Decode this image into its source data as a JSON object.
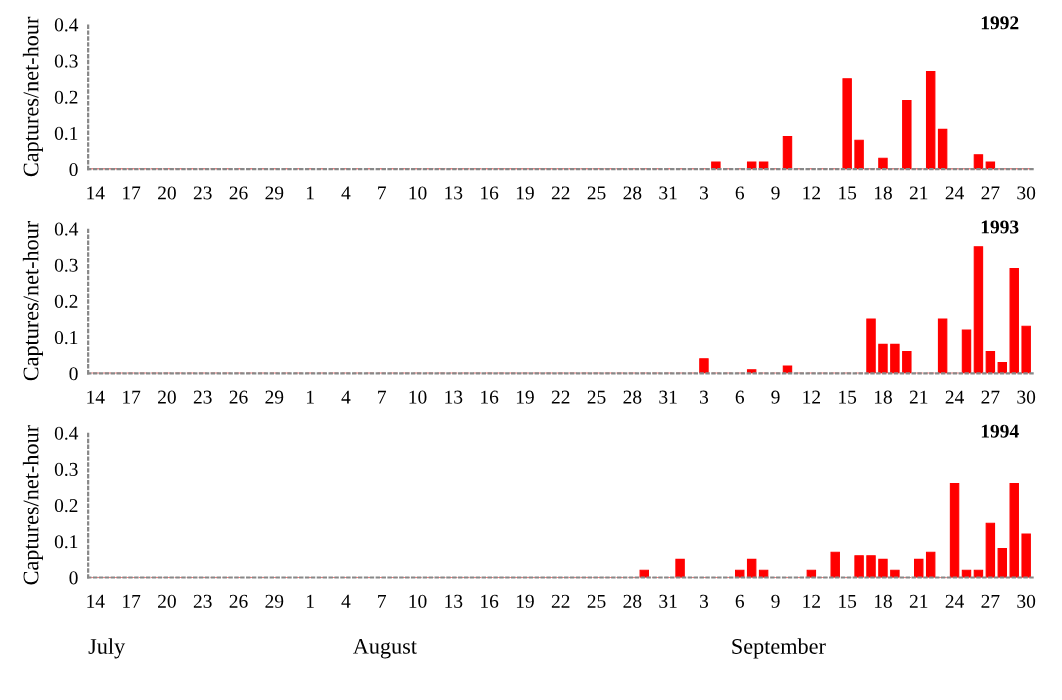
{
  "chart_data": [
    {
      "type": "bar",
      "title": "1992",
      "ylabel": "Captures/net-hour",
      "color": "#ff0000",
      "grid": false,
      "ylim": [
        0,
        0.4
      ],
      "yticks": [
        0,
        0.1,
        0.2,
        0.3,
        0.4
      ],
      "categories": [
        "14",
        null,
        null,
        "17",
        null,
        null,
        "20",
        null,
        null,
        "23",
        null,
        null,
        "26",
        null,
        null,
        "29",
        null,
        null,
        "1",
        null,
        null,
        "4",
        null,
        null,
        "7",
        null,
        null,
        "10",
        null,
        null,
        "13",
        null,
        null,
        "16",
        null,
        null,
        "19",
        null,
        null,
        "22",
        null,
        null,
        "25",
        null,
        null,
        "28",
        null,
        null,
        "31",
        null,
        null,
        "3",
        null,
        null,
        "6",
        null,
        null,
        "9",
        null,
        null,
        "12",
        null,
        null,
        "15",
        null,
        null,
        "18",
        null,
        null,
        "21",
        null,
        null,
        "24",
        null,
        null,
        "27",
        null,
        null,
        "30"
      ],
      "values": [
        0,
        0,
        0,
        0,
        0,
        0,
        0,
        0,
        0,
        0,
        0,
        0,
        0,
        0,
        0,
        0,
        0,
        0,
        0,
        0,
        0,
        0,
        0,
        0,
        0,
        0,
        0,
        0,
        0,
        0,
        0,
        0,
        0,
        0,
        0,
        0,
        0,
        0,
        0,
        0,
        0,
        0,
        0,
        0,
        0,
        0,
        0,
        0,
        0,
        0,
        0,
        0,
        0.02,
        0,
        0,
        0.02,
        0.02,
        0,
        0.09,
        0,
        0,
        0,
        0,
        0.25,
        0.08,
        0,
        0.03,
        0,
        0.19,
        0,
        0.27,
        0.11,
        0,
        0,
        0.04,
        0.02,
        0,
        0,
        0
      ]
    },
    {
      "type": "bar",
      "title": "1993",
      "ylabel": "Captures/net-hour",
      "color": "#ff0000",
      "grid": false,
      "ylim": [
        0,
        0.4
      ],
      "yticks": [
        0,
        0.1,
        0.2,
        0.3,
        0.4
      ],
      "categories": [
        "14",
        null,
        null,
        "17",
        null,
        null,
        "20",
        null,
        null,
        "23",
        null,
        null,
        "26",
        null,
        null,
        "29",
        null,
        null,
        "1",
        null,
        null,
        "4",
        null,
        null,
        "7",
        null,
        null,
        "10",
        null,
        null,
        "13",
        null,
        null,
        "16",
        null,
        null,
        "19",
        null,
        null,
        "22",
        null,
        null,
        "25",
        null,
        null,
        "28",
        null,
        null,
        "31",
        null,
        null,
        "3",
        null,
        null,
        "6",
        null,
        null,
        "9",
        null,
        null,
        "12",
        null,
        null,
        "15",
        null,
        null,
        "18",
        null,
        null,
        "21",
        null,
        null,
        "24",
        null,
        null,
        "27",
        null,
        null,
        "30"
      ],
      "values": [
        0,
        0,
        0,
        0,
        0,
        0,
        0,
        0,
        0,
        0,
        0,
        0,
        0,
        0,
        0,
        0,
        0,
        0,
        0,
        0,
        0,
        0,
        0,
        0,
        0,
        0,
        0,
        0,
        0,
        0,
        0,
        0,
        0,
        0,
        0,
        0,
        0,
        0,
        0,
        0,
        0,
        0,
        0,
        0,
        0,
        0,
        0,
        0,
        0,
        0,
        0,
        0.04,
        0,
        0,
        0,
        0.01,
        0,
        0,
        0.02,
        0,
        0,
        0,
        0,
        0,
        0,
        0.15,
        0.08,
        0.08,
        0.06,
        0,
        0,
        0.15,
        0,
        0.12,
        0.35,
        0.06,
        0.03,
        0.29,
        0.13
      ]
    },
    {
      "type": "bar",
      "title": "1994",
      "ylabel": "Captures/net-hour",
      "color": "#ff0000",
      "grid": false,
      "ylim": [
        0,
        0.4
      ],
      "yticks": [
        0,
        0.1,
        0.2,
        0.3,
        0.4
      ],
      "categories": [
        "14",
        null,
        null,
        "17",
        null,
        null,
        "20",
        null,
        null,
        "23",
        null,
        null,
        "26",
        null,
        null,
        "29",
        null,
        null,
        "1",
        null,
        null,
        "4",
        null,
        null,
        "7",
        null,
        null,
        "10",
        null,
        null,
        "13",
        null,
        null,
        "16",
        null,
        null,
        "19",
        null,
        null,
        "22",
        null,
        null,
        "25",
        null,
        null,
        "28",
        null,
        null,
        "31",
        null,
        null,
        "3",
        null,
        null,
        "6",
        null,
        null,
        "9",
        null,
        null,
        "12",
        null,
        null,
        "15",
        null,
        null,
        "18",
        null,
        null,
        "21",
        null,
        null,
        "24",
        null,
        null,
        "27",
        null,
        null,
        "30"
      ],
      "values": [
        0,
        0,
        0,
        0,
        0,
        0,
        0,
        0,
        0,
        0,
        0,
        0,
        0,
        0,
        0,
        0,
        0,
        0,
        0,
        0,
        0,
        0,
        0,
        0,
        0,
        0,
        0,
        0,
        0,
        0,
        0,
        0,
        0,
        0,
        0,
        0,
        0,
        0,
        0,
        0,
        0,
        0,
        0,
        0,
        0,
        0,
        0.02,
        0,
        0,
        0.05,
        0,
        0,
        0,
        0,
        0.02,
        0.05,
        0.02,
        0,
        0,
        0,
        0.02,
        0,
        0.07,
        0,
        0.06,
        0.06,
        0.05,
        0.02,
        0,
        0.05,
        0.07,
        0,
        0.26,
        0.02,
        0.02,
        0.15,
        0.08,
        0.26,
        0.12
      ],
      "annotations": [
        "July",
        "August",
        "September"
      ]
    }
  ]
}
